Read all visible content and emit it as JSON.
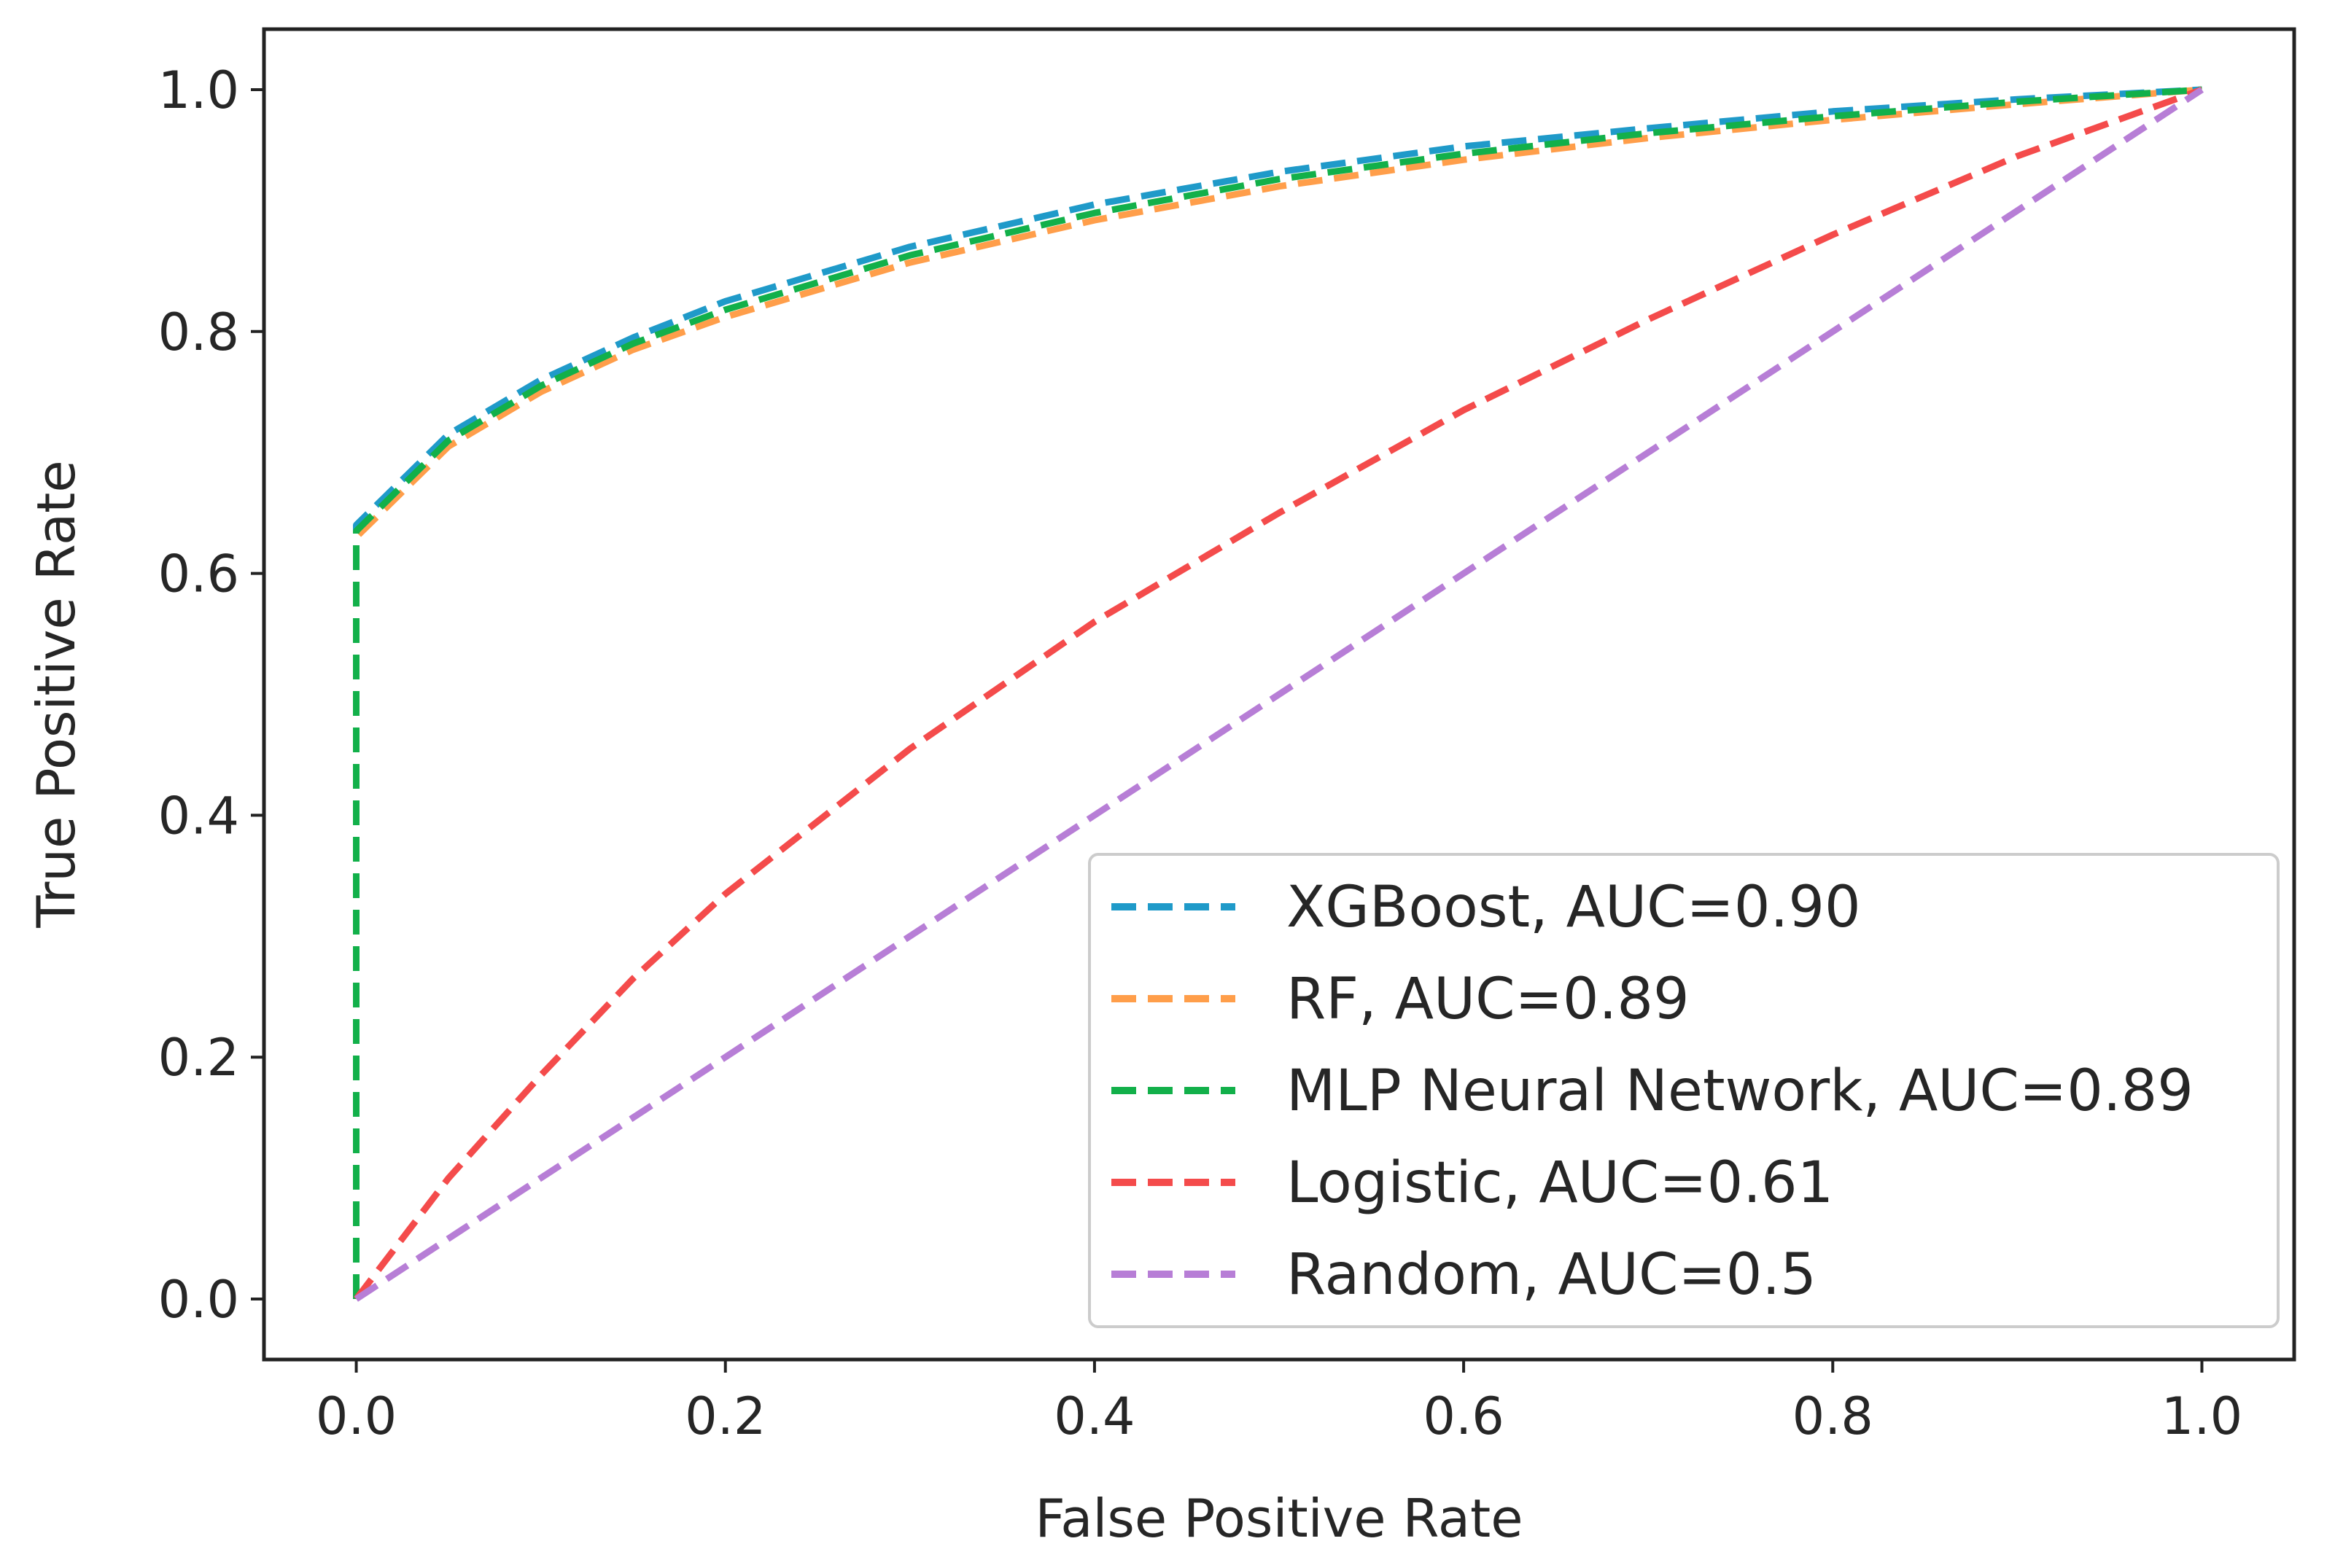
{
  "chart_data": {
    "type": "line",
    "title": "",
    "xlabel": "False Positive Rate",
    "ylabel": "True Positive Rate",
    "xlim": [
      -0.05,
      1.05
    ],
    "ylim": [
      -0.05,
      1.05
    ],
    "xticks": [
      0.0,
      0.2,
      0.4,
      0.6,
      0.8,
      1.0
    ],
    "xtick_labels": [
      "0.0",
      "0.2",
      "0.4",
      "0.6",
      "0.8",
      "1.0"
    ],
    "yticks": [
      0.0,
      0.2,
      0.4,
      0.6,
      0.8,
      1.0
    ],
    "ytick_labels": [
      "0.0",
      "0.2",
      "0.4",
      "0.6",
      "0.8",
      "1.0"
    ],
    "grid": false,
    "legend_position": "bottom-right",
    "series": [
      {
        "name": "XGBoost, AUC=0.90",
        "color": "#1f9ac9",
        "x": [
          0.0,
          0.0,
          0.05,
          0.1,
          0.15,
          0.2,
          0.3,
          0.4,
          0.5,
          0.6,
          0.7,
          0.8,
          0.9,
          1.0
        ],
        "y": [
          0.0,
          0.64,
          0.715,
          0.76,
          0.795,
          0.825,
          0.87,
          0.905,
          0.932,
          0.953,
          0.968,
          0.982,
          0.992,
          1.0
        ]
      },
      {
        "name": "RF, AUC=0.89",
        "color": "#ff9e4a",
        "x": [
          0.0,
          0.0,
          0.05,
          0.1,
          0.15,
          0.2,
          0.3,
          0.4,
          0.5,
          0.6,
          0.7,
          0.8,
          0.9,
          1.0
        ],
        "y": [
          0.0,
          0.63,
          0.705,
          0.75,
          0.785,
          0.812,
          0.857,
          0.892,
          0.92,
          0.942,
          0.96,
          0.975,
          0.988,
          1.0
        ]
      },
      {
        "name": "MLP Neural Network, AUC=0.89",
        "color": "#12b04a",
        "x": [
          0.0,
          0.0,
          0.05,
          0.1,
          0.15,
          0.2,
          0.3,
          0.4,
          0.5,
          0.6,
          0.7,
          0.8,
          0.9,
          1.0
        ],
        "y": [
          0.0,
          0.635,
          0.71,
          0.755,
          0.79,
          0.818,
          0.863,
          0.898,
          0.926,
          0.947,
          0.964,
          0.978,
          0.99,
          1.0
        ]
      },
      {
        "name": "Logistic, AUC=0.61",
        "color": "#f44b4b",
        "x": [
          0.0,
          0.05,
          0.1,
          0.15,
          0.2,
          0.3,
          0.4,
          0.5,
          0.6,
          0.7,
          0.8,
          0.9,
          1.0
        ],
        "y": [
          0.0,
          0.1,
          0.185,
          0.265,
          0.335,
          0.455,
          0.56,
          0.65,
          0.735,
          0.81,
          0.88,
          0.945,
          1.0
        ]
      },
      {
        "name": "Random, AUC=0.5",
        "color": "#b77ed6",
        "x": [
          0.0,
          1.0
        ],
        "y": [
          0.0,
          1.0
        ]
      }
    ]
  }
}
